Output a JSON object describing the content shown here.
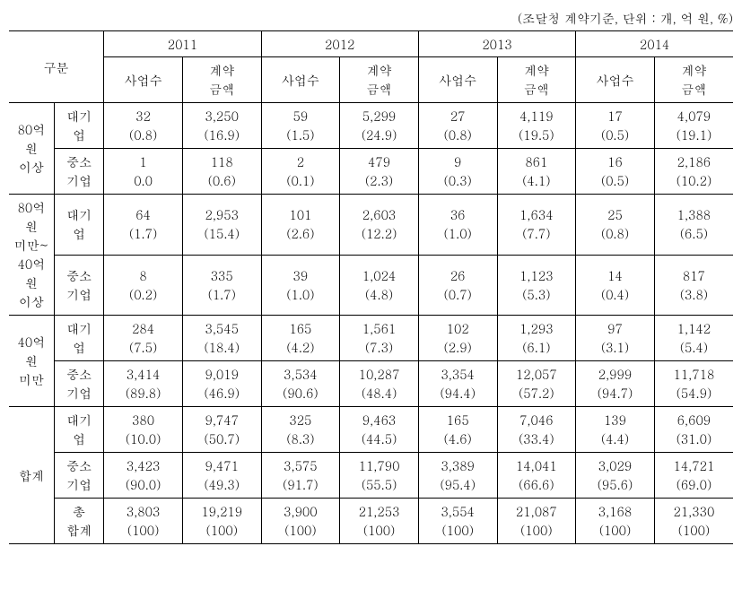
{
  "caption": "(조달청 계약기준, 단위 : 개, 억 원, %)",
  "header": {
    "gubun": "구분",
    "years": [
      "2011",
      "2012",
      "2013",
      "2014"
    ],
    "sub": [
      "사업수",
      "계약\n금액"
    ]
  },
  "rowGroups": [
    {
      "label": "80억\n원\n이상",
      "types": [
        "대기\n업",
        "중소\n기업"
      ]
    },
    {
      "label": "80억\n원\n미만~\n40억\n원\n이상",
      "types": [
        "대기\n업",
        "중소\n기업"
      ]
    },
    {
      "label": "40억\n원\n미만",
      "types": [
        "대기\n업",
        "중소\n기업"
      ]
    },
    {
      "label": "합계",
      "types": [
        "대기\n업",
        "중소\n기업",
        "총\n합계"
      ]
    }
  ],
  "cells": {
    "g0t0": [
      "32\n(0.8)",
      "3,250\n(16.9)",
      "59\n(1.5)",
      "5,299\n(24.9)",
      "27\n(0.8)",
      "4,119\n(19.5)",
      "17\n(0.5)",
      "4,079\n(19.1)"
    ],
    "g0t1": [
      "1\n0.0",
      "118\n(0.6)",
      "2\n(0.1)",
      "479\n(2.3)",
      "9\n(0.3)",
      "861\n(4.1)",
      "16\n(0.5)",
      "2,186\n(10.2)"
    ],
    "g1t0": [
      "64\n(1.7)",
      "2,953\n(15.4)",
      "101\n(2.6)",
      "2,603\n(12.2)",
      "36\n(1.0)",
      "1,634\n(7.7)",
      "25\n(0.8)",
      "1,388\n(6.5)"
    ],
    "g1t1": [
      "8\n(0.2)",
      "335\n(1.7)",
      "39\n(1.0)",
      "1,024\n(4.8)",
      "26\n(0.7)",
      "1,123\n(5.3)",
      "14\n(0.4)",
      "817\n(3.8)"
    ],
    "g2t0": [
      "284\n(7.5)",
      "3,545\n(18.4)",
      "165\n(4.2)",
      "1,561\n(7.3)",
      "102\n(2.9)",
      "1,293\n(6.1)",
      "97\n(3.1)",
      "1,142\n(5.4)"
    ],
    "g2t1": [
      "3,414\n(89.8)",
      "9,019\n(46.9)",
      "3,534\n(90.6)",
      "10,287\n(48.4)",
      "3,354\n(94.4)",
      "12,057\n(57.2)",
      "2,999\n(94.7)",
      "11,718\n(54.9)"
    ],
    "g3t0": [
      "380\n(10.0)",
      "9,747\n(50.7)",
      "325\n(8.3)",
      "9,463\n(44.5)",
      "165\n(4.6)",
      "7,046\n(33.4)",
      "139\n(4.4)",
      "6,609\n(31.0)"
    ],
    "g3t1": [
      "3,423\n(90.0)",
      "9,471\n(49.3)",
      "3,575\n(91.7)",
      "11,790\n(55.5)",
      "3,389\n(95.4)",
      "14,041\n(66.6)",
      "3,029\n(95.6)",
      "14,721\n(69.0)"
    ],
    "g3t2": [
      "3,803\n(100)",
      "19,219\n(100)",
      "3,900\n(100)",
      "21,253\n(100)",
      "3,554\n(100)",
      "21,087\n(100)",
      "3,168\n(100)",
      "21,330\n(100)"
    ]
  }
}
